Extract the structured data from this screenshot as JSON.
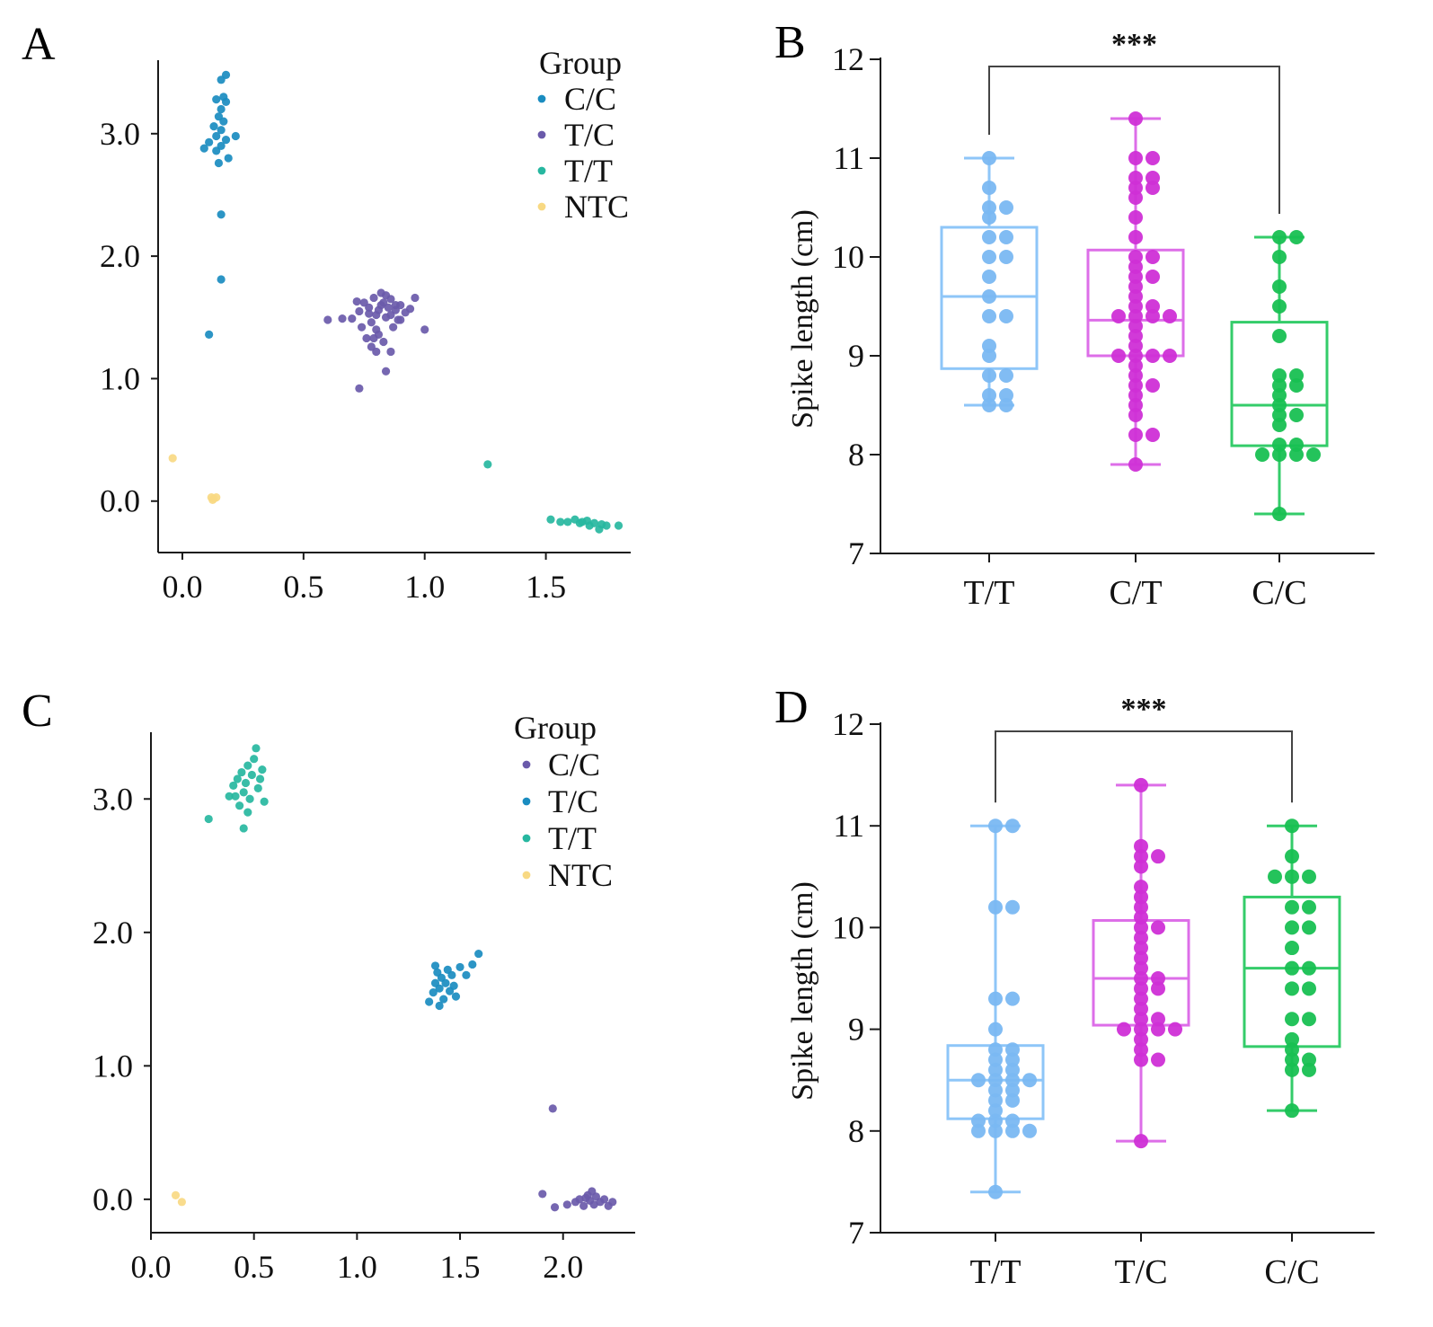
{
  "panels": {
    "A": "A",
    "B": "B",
    "C": "C",
    "D": "D"
  },
  "colors": {
    "cc_a": "#1a8cc0",
    "tc_a": "#6a5aaa",
    "tt_a": "#27b7a0",
    "ntc": "#f8d983",
    "cc_c": "#6a5aaa",
    "tc_c": "#1a8cc0",
    "tt_c": "#27b7a0",
    "box_tt": "#8ec6f8",
    "box_tt_pt": "#7ab8f2",
    "box_mid": "#dd6ee8",
    "box_mid_pt": "#cf2fd6",
    "box_cc": "#34cc6a",
    "box_cc_pt": "#18c052",
    "axis": "#1a1a1a"
  },
  "chart_data": [
    {
      "id": "A",
      "type": "scatter",
      "legend_title": "Group",
      "legend_position": "top-right",
      "xlim": [
        -0.1,
        1.85
      ],
      "ylim": [
        -0.42,
        3.6
      ],
      "xticks": [
        "0.0",
        "0.5",
        "1.0",
        "1.5"
      ],
      "xtick_values": [
        0,
        0.5,
        1.0,
        1.5
      ],
      "yticks": [
        "0.0",
        "1.0",
        "2.0",
        "3.0"
      ],
      "ytick_values": [
        0,
        1,
        2,
        3
      ],
      "series": [
        {
          "name": "C/C",
          "color_key": "cc_a",
          "points": [
            [
              0.18,
              3.48
            ],
            [
              0.16,
              3.44
            ],
            [
              0.17,
              3.3
            ],
            [
              0.14,
              3.28
            ],
            [
              0.18,
              3.26
            ],
            [
              0.16,
              3.2
            ],
            [
              0.15,
              3.14
            ],
            [
              0.17,
              3.1
            ],
            [
              0.13,
              3.06
            ],
            [
              0.16,
              3.03
            ],
            [
              0.14,
              2.98
            ],
            [
              0.22,
              2.98
            ],
            [
              0.18,
              2.95
            ],
            [
              0.11,
              2.93
            ],
            [
              0.16,
              2.9
            ],
            [
              0.09,
              2.88
            ],
            [
              0.14,
              2.86
            ],
            [
              0.19,
              2.8
            ],
            [
              0.15,
              2.76
            ],
            [
              0.16,
              2.34
            ],
            [
              0.16,
              1.81
            ],
            [
              0.11,
              1.36
            ]
          ]
        },
        {
          "name": "T/C",
          "color_key": "tc_a",
          "points": [
            [
              0.6,
              1.48
            ],
            [
              0.66,
              1.49
            ],
            [
              0.7,
              1.49
            ],
            [
              0.73,
              1.55
            ],
            [
              0.75,
              1.62
            ],
            [
              0.77,
              1.58
            ],
            [
              0.78,
              1.46
            ],
            [
              0.79,
              1.66
            ],
            [
              0.8,
              1.52
            ],
            [
              0.8,
              1.4
            ],
            [
              0.81,
              1.56
            ],
            [
              0.82,
              1.7
            ],
            [
              0.82,
              1.6
            ],
            [
              0.83,
              1.62
            ],
            [
              0.84,
              1.5
            ],
            [
              0.84,
              1.68
            ],
            [
              0.85,
              1.58
            ],
            [
              0.86,
              1.65
            ],
            [
              0.86,
              1.52
            ],
            [
              0.87,
              1.42
            ],
            [
              0.88,
              1.6
            ],
            [
              0.88,
              1.56
            ],
            [
              0.89,
              1.48
            ],
            [
              0.9,
              1.6
            ],
            [
              0.92,
              1.54
            ],
            [
              0.94,
              1.57
            ],
            [
              0.96,
              1.66
            ],
            [
              0.72,
              1.63
            ],
            [
              0.74,
              1.42
            ],
            [
              0.76,
              1.33
            ],
            [
              0.78,
              1.26
            ],
            [
              0.81,
              1.36
            ],
            [
              0.83,
              1.3
            ],
            [
              0.8,
              1.22
            ],
            [
              0.84,
              1.06
            ],
            [
              0.73,
              0.92
            ],
            [
              0.86,
              1.22
            ],
            [
              0.79,
              1.33
            ],
            [
              1.0,
              1.4
            ],
            [
              0.9,
              1.48
            ],
            [
              0.77,
              1.53
            ]
          ]
        },
        {
          "name": "T/T",
          "color_key": "tt_a",
          "points": [
            [
              1.26,
              0.3
            ],
            [
              1.52,
              -0.15
            ],
            [
              1.56,
              -0.17
            ],
            [
              1.59,
              -0.17
            ],
            [
              1.62,
              -0.15
            ],
            [
              1.65,
              -0.17
            ],
            [
              1.68,
              -0.2
            ],
            [
              1.7,
              -0.18
            ],
            [
              1.72,
              -0.23
            ],
            [
              1.73,
              -0.19
            ],
            [
              1.75,
              -0.2
            ],
            [
              1.8,
              -0.2
            ],
            [
              1.64,
              -0.18
            ],
            [
              1.67,
              -0.16
            ]
          ]
        },
        {
          "name": "NTC",
          "color_key": "ntc",
          "points": [
            [
              -0.04,
              0.35
            ],
            [
              0.12,
              0.03
            ],
            [
              0.13,
              0.02
            ],
            [
              0.14,
              0.03
            ],
            [
              0.125,
              0.01
            ]
          ]
        }
      ]
    },
    {
      "id": "B",
      "type": "box",
      "ylabel": "Spike length (cm)",
      "ylim": [
        7,
        12
      ],
      "yticks": [
        "7",
        "8",
        "9",
        "10",
        "11",
        "12"
      ],
      "ytick_values": [
        7,
        8,
        9,
        10,
        11,
        12
      ],
      "significance": "***",
      "significance_between": [
        "T/T",
        "C/C"
      ],
      "groups": [
        {
          "name": "T/T",
          "color_key": "box_tt",
          "point_color_key": "box_tt_pt",
          "min": 8.5,
          "q1": 8.87,
          "median": 9.6,
          "q3": 10.3,
          "max": 11.0,
          "points": [
            11.0,
            10.7,
            10.5,
            10.5,
            10.4,
            10.2,
            10.2,
            10.0,
            10.0,
            9.8,
            9.6,
            9.4,
            9.4,
            9.1,
            9.0,
            8.8,
            8.8,
            8.6,
            8.6,
            8.5,
            8.5
          ]
        },
        {
          "name": "C/T",
          "color_key": "box_mid",
          "point_color_key": "box_mid_pt",
          "min": 7.9,
          "q1": 9.0,
          "median": 9.36,
          "q3": 10.07,
          "max": 11.4,
          "points": [
            11.4,
            11.0,
            11.0,
            10.8,
            10.8,
            10.7,
            10.7,
            10.6,
            10.4,
            10.2,
            10.0,
            10.0,
            9.9,
            9.8,
            9.8,
            9.7,
            9.6,
            9.5,
            9.5,
            9.4,
            9.4,
            9.4,
            9.4,
            9.3,
            9.2,
            9.1,
            9.0,
            9.0,
            9.0,
            9.0,
            8.9,
            8.8,
            8.7,
            8.7,
            8.6,
            8.5,
            8.4,
            8.2,
            8.2,
            7.9
          ]
        },
        {
          "name": "C/C",
          "color_key": "box_cc",
          "point_color_key": "box_cc_pt",
          "min": 7.4,
          "q1": 8.09,
          "median": 8.5,
          "q3": 9.34,
          "max": 10.2,
          "points": [
            10.2,
            10.2,
            10.0,
            9.7,
            9.5,
            9.2,
            8.8,
            8.8,
            8.7,
            8.7,
            8.6,
            8.5,
            8.4,
            8.4,
            8.3,
            8.1,
            8.1,
            8.0,
            8.0,
            8.0,
            8.0,
            7.4
          ]
        }
      ]
    },
    {
      "id": "C",
      "type": "scatter",
      "legend_title": "Group",
      "legend_position": "top-right",
      "xlim": [
        0.0,
        2.35
      ],
      "ylim": [
        -0.25,
        3.5
      ],
      "xticks": [
        "0.0",
        "0.5",
        "1.0",
        "1.5",
        "2.0"
      ],
      "xtick_values": [
        0,
        0.5,
        1.0,
        1.5,
        2.0
      ],
      "yticks": [
        "0.0",
        "1.0",
        "2.0",
        "3.0"
      ],
      "ytick_values": [
        0,
        1,
        2,
        3
      ],
      "series": [
        {
          "name": "C/C",
          "color_key": "cc_c",
          "points": [
            [
              1.95,
              0.68
            ],
            [
              1.9,
              0.04
            ],
            [
              1.96,
              -0.06
            ],
            [
              2.02,
              -0.04
            ],
            [
              2.06,
              -0.02
            ],
            [
              2.08,
              0.0
            ],
            [
              2.1,
              -0.05
            ],
            [
              2.12,
              0.03
            ],
            [
              2.13,
              -0.01
            ],
            [
              2.15,
              -0.04
            ],
            [
              2.16,
              0.02
            ],
            [
              2.18,
              -0.02
            ],
            [
              2.2,
              0.0
            ],
            [
              2.22,
              -0.05
            ],
            [
              2.24,
              -0.02
            ],
            [
              2.14,
              0.06
            ],
            [
              2.11,
              0.01
            ]
          ]
        },
        {
          "name": "T/C",
          "color_key": "tc_c",
          "points": [
            [
              1.35,
              1.48
            ],
            [
              1.37,
              1.55
            ],
            [
              1.38,
              1.62
            ],
            [
              1.39,
              1.7
            ],
            [
              1.4,
              1.58
            ],
            [
              1.41,
              1.66
            ],
            [
              1.42,
              1.5
            ],
            [
              1.43,
              1.62
            ],
            [
              1.44,
              1.72
            ],
            [
              1.45,
              1.56
            ],
            [
              1.46,
              1.68
            ],
            [
              1.47,
              1.6
            ],
            [
              1.48,
              1.52
            ],
            [
              1.5,
              1.74
            ],
            [
              1.53,
              1.68
            ],
            [
              1.56,
              1.76
            ],
            [
              1.59,
              1.84
            ],
            [
              1.4,
              1.45
            ],
            [
              1.38,
              1.75
            ]
          ]
        },
        {
          "name": "T/T",
          "color_key": "tt_c",
          "points": [
            [
              0.28,
              2.85
            ],
            [
              0.38,
              3.02
            ],
            [
              0.4,
              3.1
            ],
            [
              0.42,
              3.15
            ],
            [
              0.43,
              2.95
            ],
            [
              0.44,
              3.2
            ],
            [
              0.45,
              3.05
            ],
            [
              0.45,
              2.78
            ],
            [
              0.46,
              3.12
            ],
            [
              0.47,
              3.25
            ],
            [
              0.48,
              3.0
            ],
            [
              0.49,
              3.18
            ],
            [
              0.5,
              3.3
            ],
            [
              0.51,
              3.38
            ],
            [
              0.52,
              3.08
            ],
            [
              0.54,
              3.22
            ],
            [
              0.55,
              2.98
            ],
            [
              0.53,
              3.15
            ],
            [
              0.41,
              3.02
            ],
            [
              0.47,
              2.9
            ]
          ]
        },
        {
          "name": "NTC",
          "color_key": "ntc",
          "points": [
            [
              0.12,
              0.03
            ],
            [
              0.15,
              -0.02
            ]
          ]
        }
      ]
    },
    {
      "id": "D",
      "type": "box",
      "ylabel": "Spike length (cm)",
      "ylim": [
        7,
        12
      ],
      "yticks": [
        "7",
        "8",
        "9",
        "10",
        "11",
        "12"
      ],
      "ytick_values": [
        7,
        8,
        9,
        10,
        11,
        12
      ],
      "significance": "***",
      "significance_between": [
        "T/T",
        "C/C"
      ],
      "groups": [
        {
          "name": "T/T",
          "color_key": "box_tt",
          "point_color_key": "box_tt_pt",
          "min": 7.4,
          "q1": 8.12,
          "median": 8.5,
          "q3": 8.84,
          "max": 11.0,
          "points": [
            11.0,
            11.0,
            10.2,
            10.2,
            9.3,
            9.3,
            9.0,
            8.8,
            8.8,
            8.7,
            8.7,
            8.6,
            8.6,
            8.5,
            8.5,
            8.5,
            8.5,
            8.4,
            8.4,
            8.3,
            8.3,
            8.2,
            8.1,
            8.1,
            8.1,
            8.0,
            8.0,
            8.0,
            8.0,
            7.4
          ]
        },
        {
          "name": "T/C",
          "color_key": "box_mid",
          "point_color_key": "box_mid_pt",
          "min": 7.9,
          "q1": 9.04,
          "median": 9.5,
          "q3": 10.07,
          "max": 11.4,
          "points": [
            11.4,
            10.8,
            10.7,
            10.7,
            10.6,
            10.4,
            10.3,
            10.2,
            10.1,
            10.0,
            10.0,
            9.9,
            9.8,
            9.7,
            9.6,
            9.5,
            9.5,
            9.4,
            9.4,
            9.3,
            9.2,
            9.1,
            9.1,
            9.0,
            9.0,
            9.0,
            9.0,
            8.9,
            8.8,
            8.7,
            8.7,
            7.9
          ]
        },
        {
          "name": "C/C",
          "color_key": "box_cc",
          "point_color_key": "box_cc_pt",
          "min": 8.2,
          "q1": 8.83,
          "median": 9.6,
          "q3": 10.3,
          "max": 11.0,
          "points": [
            11.0,
            10.7,
            10.5,
            10.5,
            10.5,
            10.2,
            10.2,
            10.0,
            10.0,
            9.8,
            9.6,
            9.6,
            9.4,
            9.4,
            9.1,
            9.1,
            8.9,
            8.8,
            8.7,
            8.7,
            8.6,
            8.6,
            8.2
          ]
        }
      ]
    }
  ]
}
